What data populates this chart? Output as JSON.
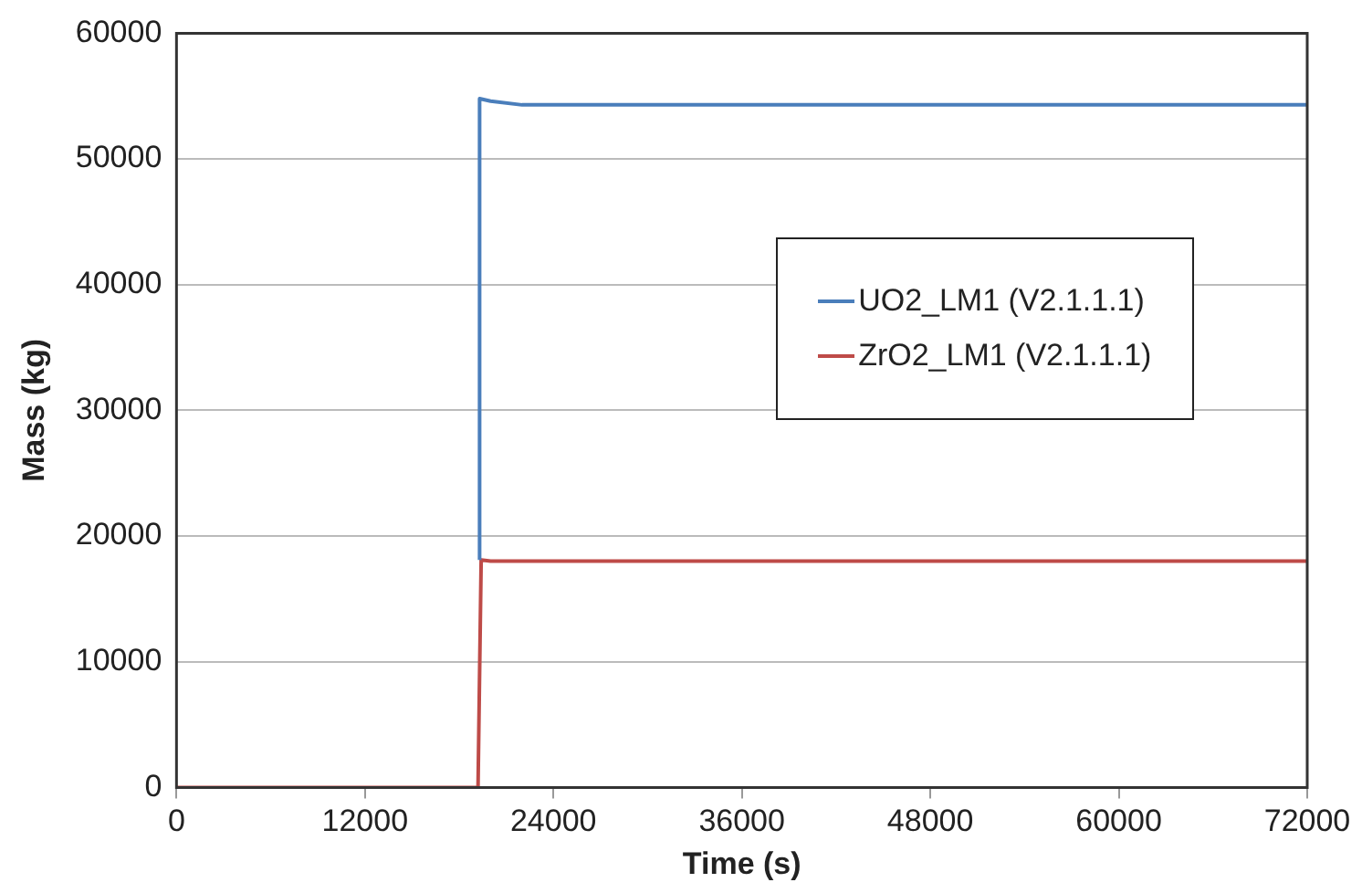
{
  "chart_data": {
    "type": "line",
    "xlabel": "Time (s)",
    "ylabel": "Mass (kg)",
    "xlim": [
      0,
      72000
    ],
    "xticks": [
      0,
      12000,
      24000,
      36000,
      48000,
      60000,
      72000
    ],
    "ylim": [
      0,
      60000
    ],
    "yticks": [
      0,
      10000,
      20000,
      30000,
      40000,
      50000,
      60000
    ],
    "grid": "y",
    "legend": "right",
    "marker": "none",
    "line_style": "solid",
    "series": [
      {
        "name": "UO2_LM1 (V2.1.1.1)",
        "color": "#4a7ebb",
        "x": [
          19300,
          19300,
          20000,
          22000,
          72000
        ],
        "values": [
          18100,
          54800,
          54600,
          54300,
          54300
        ]
      },
      {
        "name": "ZrO2_LM1 (V2.1.1.1)",
        "color": "#be4b48",
        "x": [
          0,
          19200,
          19400,
          20000,
          72000
        ],
        "values": [
          0,
          0,
          18100,
          18000,
          18000
        ]
      }
    ]
  }
}
